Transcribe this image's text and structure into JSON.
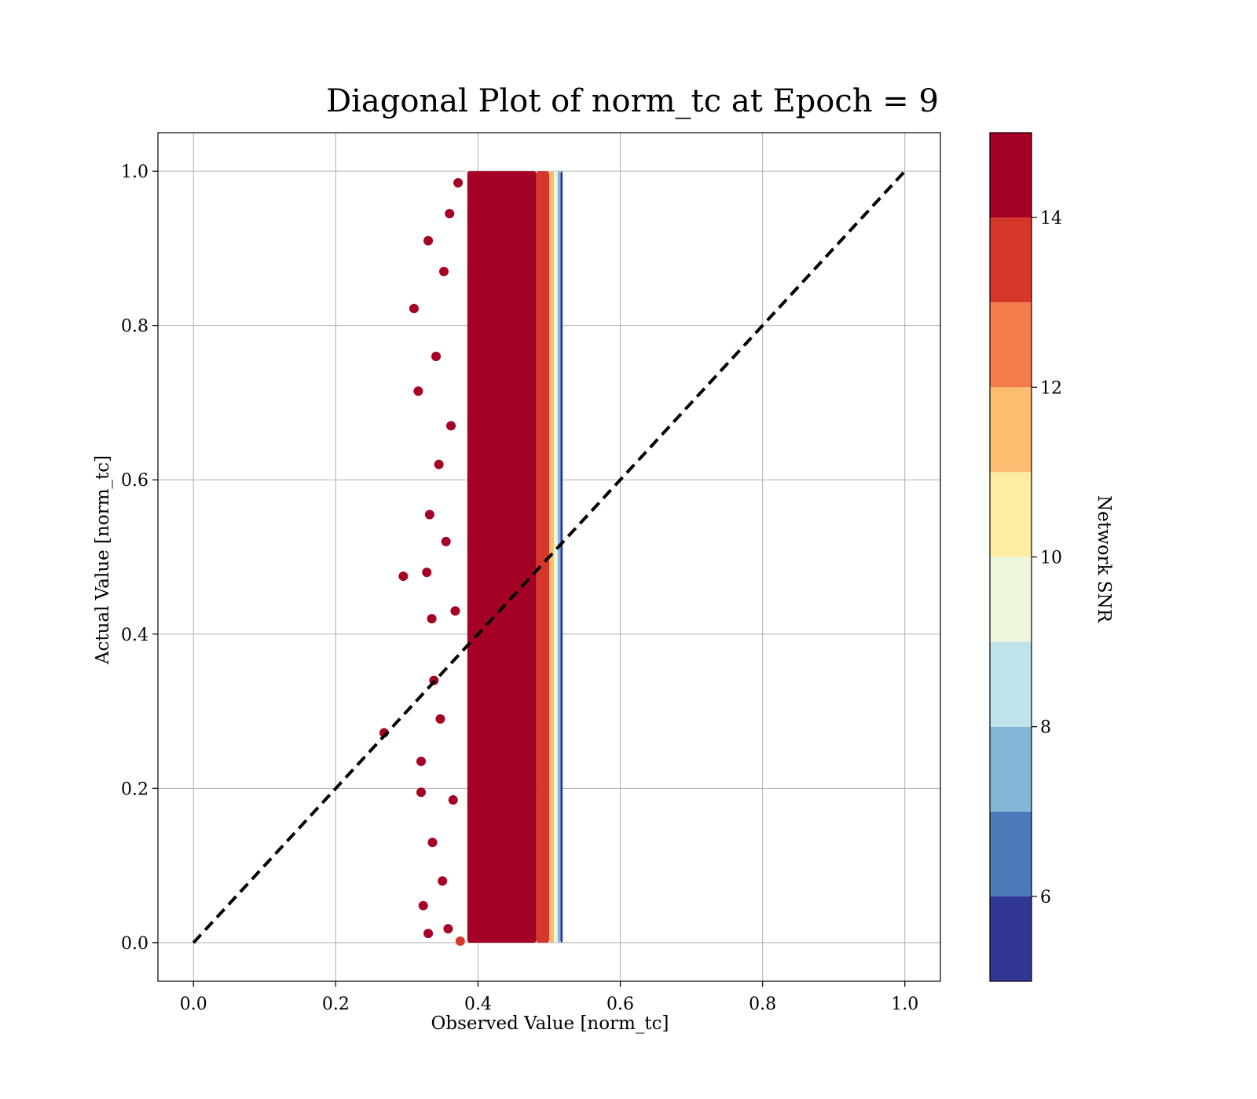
{
  "chart_data": {
    "type": "scatter",
    "title": "Diagonal Plot of norm_tc at Epoch = 9",
    "xlabel": "Observed Value [norm_tc]",
    "ylabel": "Actual Value [norm_tc]",
    "xlim": [
      -0.05,
      1.05
    ],
    "ylim": [
      -0.05,
      1.05
    ],
    "xticks": [
      "0.0",
      "0.2",
      "0.4",
      "0.6",
      "0.8",
      "1.0"
    ],
    "yticks": [
      "0.0",
      "0.2",
      "0.4",
      "0.6",
      "0.8",
      "1.0"
    ],
    "grid": true,
    "reference_line": {
      "style": "dashed",
      "color": "#000000",
      "x": [
        0.0,
        1.0
      ],
      "y": [
        0.0,
        1.0
      ]
    },
    "colorbar": {
      "label": "Network SNR",
      "range": [
        5,
        15
      ],
      "ticks": [
        "6",
        "8",
        "10",
        "12",
        "14"
      ],
      "bands": [
        {
          "from": 5,
          "to": 6,
          "color": "#313695"
        },
        {
          "from": 6,
          "to": 7,
          "color": "#4a7ab7"
        },
        {
          "from": 7,
          "to": 8,
          "color": "#83b7d7"
        },
        {
          "from": 8,
          "to": 9,
          "color": "#c0e2eb"
        },
        {
          "from": 9,
          "to": 10,
          "color": "#eef7de"
        },
        {
          "from": 10,
          "to": 11,
          "color": "#feeca2"
        },
        {
          "from": 11,
          "to": 12,
          "color": "#fcbd71"
        },
        {
          "from": 12,
          "to": 13,
          "color": "#f37c4a"
        },
        {
          "from": 13,
          "to": 14,
          "color": "#d73729"
        },
        {
          "from": 14,
          "to": 15,
          "color": "#a50026"
        }
      ]
    },
    "series": [
      {
        "points": [
          {
            "x": 0.295,
            "y": 0.475,
            "snr": 15
          },
          {
            "x": 0.268,
            "y": 0.272,
            "snr": 15
          },
          {
            "x": 0.31,
            "y": 0.822,
            "snr": 15
          },
          {
            "x": 0.316,
            "y": 0.715,
            "snr": 15
          },
          {
            "x": 0.32,
            "y": 0.235,
            "snr": 15
          },
          {
            "x": 0.32,
            "y": 0.195,
            "snr": 15
          },
          {
            "x": 0.323,
            "y": 0.048,
            "snr": 15
          },
          {
            "x": 0.328,
            "y": 0.48,
            "snr": 15
          },
          {
            "x": 0.33,
            "y": 0.012,
            "snr": 15
          },
          {
            "x": 0.33,
            "y": 0.91,
            "snr": 15
          },
          {
            "x": 0.332,
            "y": 0.555,
            "snr": 15
          },
          {
            "x": 0.335,
            "y": 0.42,
            "snr": 15
          },
          {
            "x": 0.336,
            "y": 0.13,
            "snr": 14
          },
          {
            "x": 0.338,
            "y": 0.34,
            "snr": 15
          },
          {
            "x": 0.341,
            "y": 0.76,
            "snr": 15
          },
          {
            "x": 0.345,
            "y": 0.62,
            "snr": 15
          },
          {
            "x": 0.347,
            "y": 0.29,
            "snr": 15
          },
          {
            "x": 0.35,
            "y": 0.08,
            "snr": 15
          },
          {
            "x": 0.352,
            "y": 0.87,
            "snr": 15
          },
          {
            "x": 0.355,
            "y": 0.52,
            "snr": 15
          },
          {
            "x": 0.358,
            "y": 0.018,
            "snr": 15
          },
          {
            "x": 0.36,
            "y": 0.945,
            "snr": 14
          },
          {
            "x": 0.362,
            "y": 0.67,
            "snr": 15
          },
          {
            "x": 0.365,
            "y": 0.185,
            "snr": 15
          },
          {
            "x": 0.368,
            "y": 0.43,
            "snr": 15
          },
          {
            "x": 0.372,
            "y": 0.985,
            "snr": 15
          },
          {
            "x": 0.375,
            "y": 0.002,
            "snr": 13
          }
        ]
      }
    ],
    "band_fill": [
      {
        "x0": 0.385,
        "x1": 0.482,
        "y0": 0.0,
        "y1": 1.0,
        "snr": 15
      },
      {
        "x0": 0.482,
        "x1": 0.5,
        "y0": 0.0,
        "y1": 1.0,
        "snr": 13
      },
      {
        "x0": 0.5,
        "x1": 0.507,
        "y0": 0.0,
        "y1": 1.0,
        "snr": 11
      },
      {
        "x0": 0.507,
        "x1": 0.512,
        "y0": 0.0,
        "y1": 1.0,
        "snr": 9
      },
      {
        "x0": 0.512,
        "x1": 0.516,
        "y0": 0.0,
        "y1": 1.0,
        "snr": 7
      },
      {
        "x0": 0.516,
        "x1": 0.519,
        "y0": 0.0,
        "y1": 1.0,
        "snr": 5
      }
    ]
  }
}
